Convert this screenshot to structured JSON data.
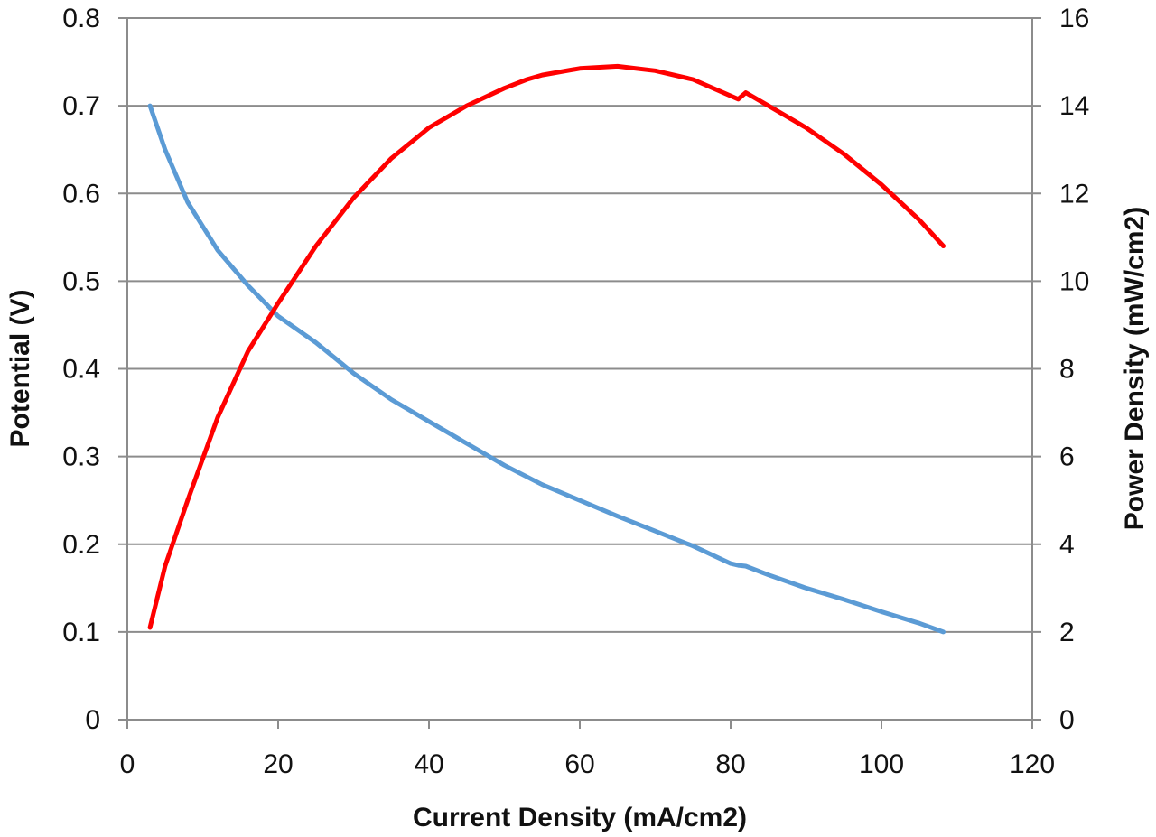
{
  "chart_data": {
    "type": "line",
    "title": "",
    "xlabel": "Current Density (mA/cm2)",
    "ylabel": "Potential (V)",
    "y2label": "Power Density (mW/cm2)",
    "xlim": [
      0,
      120
    ],
    "ylim": [
      0,
      0.8
    ],
    "y2lim": [
      0,
      16
    ],
    "x_ticks": [
      "0",
      "20",
      "40",
      "60",
      "80",
      "100",
      "120"
    ],
    "y_ticks": [
      "0",
      "0.1",
      "0.2",
      "0.3",
      "0.4",
      "0.5",
      "0.6",
      "0.7",
      "0.8"
    ],
    "y2_ticks": [
      "0",
      "2",
      "4",
      "6",
      "8",
      "10",
      "12",
      "14",
      "16"
    ],
    "grid": "horizontal",
    "legend": "none",
    "series": [
      {
        "axis": "left",
        "color": "#5b9bd5",
        "points": [
          [
            3.0,
            0.7
          ],
          [
            5,
            0.65
          ],
          [
            8,
            0.59
          ],
          [
            12,
            0.535
          ],
          [
            16,
            0.495
          ],
          [
            20,
            0.46
          ],
          [
            25,
            0.43
          ],
          [
            30,
            0.395
          ],
          [
            35,
            0.365
          ],
          [
            40,
            0.34
          ],
          [
            45,
            0.315
          ],
          [
            50,
            0.29
          ],
          [
            55,
            0.268
          ],
          [
            60,
            0.25
          ],
          [
            65,
            0.232
          ],
          [
            70,
            0.215
          ],
          [
            75,
            0.198
          ],
          [
            80,
            0.178
          ],
          [
            81,
            0.176
          ],
          [
            82,
            0.175
          ],
          [
            85,
            0.165
          ],
          [
            90,
            0.15
          ],
          [
            95,
            0.137
          ],
          [
            100,
            0.123
          ],
          [
            105,
            0.11
          ],
          [
            108.2,
            0.1
          ]
        ]
      },
      {
        "axis": "right",
        "color": "#ff0000",
        "points": [
          [
            3.0,
            2.1
          ],
          [
            5,
            3.5
          ],
          [
            8,
            5.0
          ],
          [
            12,
            6.9
          ],
          [
            16,
            8.4
          ],
          [
            20,
            9.5
          ],
          [
            25,
            10.8
          ],
          [
            30,
            11.9
          ],
          [
            35,
            12.8
          ],
          [
            40,
            13.5
          ],
          [
            45,
            14.0
          ],
          [
            50,
            14.4
          ],
          [
            53,
            14.6
          ],
          [
            55,
            14.7
          ],
          [
            60,
            14.85
          ],
          [
            65,
            14.9
          ],
          [
            70,
            14.8
          ],
          [
            75,
            14.6
          ],
          [
            81,
            14.15
          ],
          [
            82,
            14.3
          ],
          [
            85,
            14.0
          ],
          [
            90,
            13.5
          ],
          [
            95,
            12.9
          ],
          [
            100,
            12.2
          ],
          [
            105,
            11.4
          ],
          [
            108.2,
            10.8
          ]
        ]
      }
    ]
  }
}
